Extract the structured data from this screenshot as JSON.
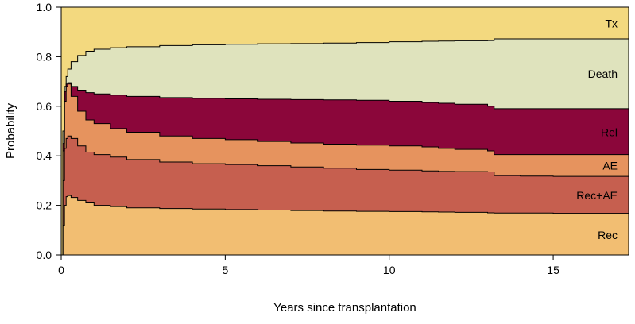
{
  "chart_data": {
    "type": "area",
    "stacked": true,
    "xlabel": "Years since transplantation",
    "ylabel": "Probability",
    "xlim": [
      0,
      17.3
    ],
    "ylim": [
      0,
      1
    ],
    "xticks": [
      {
        "value": 0,
        "label": "0"
      },
      {
        "value": 5,
        "label": "5"
      },
      {
        "value": 10,
        "label": "10"
      },
      {
        "value": 15,
        "label": "15"
      }
    ],
    "yticks": [
      {
        "value": 0,
        "label": "0.0"
      },
      {
        "value": 0.2,
        "label": "0.2"
      },
      {
        "value": 0.4,
        "label": "0.4"
      },
      {
        "value": 0.6,
        "label": "0.6"
      },
      {
        "value": 0.8,
        "label": "0.8"
      },
      {
        "value": 1.0,
        "label": "1.0"
      }
    ],
    "x": [
      0,
      0.05,
      0.1,
      0.15,
      0.2,
      0.3,
      0.5,
      0.75,
      1,
      1.5,
      2,
      3,
      4,
      5,
      6,
      7,
      8,
      9,
      10,
      11,
      11.5,
      12,
      13,
      13.2,
      14,
      15,
      16,
      17.3
    ],
    "cumulative_boundaries": [
      {
        "name": "Rec",
        "values": [
          0,
          0.12,
          0.2,
          0.235,
          0.24,
          0.232,
          0.22,
          0.21,
          0.2,
          0.195,
          0.19,
          0.187,
          0.185,
          0.183,
          0.181,
          0.179,
          0.177,
          0.176,
          0.175,
          0.174,
          0.173,
          0.172,
          0.17,
          0.169,
          0.169,
          0.168,
          0.168,
          0.168
        ]
      },
      {
        "name": "Rec+AE",
        "values": [
          0,
          0.3,
          0.43,
          0.47,
          0.48,
          0.47,
          0.44,
          0.415,
          0.405,
          0.395,
          0.385,
          0.375,
          0.368,
          0.365,
          0.36,
          0.355,
          0.35,
          0.345,
          0.342,
          0.339,
          0.337,
          0.336,
          0.335,
          0.32,
          0.318,
          0.317,
          0.317,
          0.317
        ]
      },
      {
        "name": "AE",
        "values": [
          0,
          0.42,
          0.62,
          0.68,
          0.69,
          0.64,
          0.58,
          0.545,
          0.53,
          0.51,
          0.495,
          0.48,
          0.47,
          0.465,
          0.458,
          0.452,
          0.447,
          0.443,
          0.44,
          0.436,
          0.43,
          0.426,
          0.42,
          0.405,
          0.405,
          0.405,
          0.405,
          0.405
        ]
      },
      {
        "name": "Rel",
        "values": [
          0,
          0.45,
          0.66,
          0.69,
          0.695,
          0.68,
          0.665,
          0.655,
          0.65,
          0.645,
          0.64,
          0.635,
          0.632,
          0.63,
          0.628,
          0.627,
          0.626,
          0.624,
          0.62,
          0.615,
          0.612,
          0.608,
          0.6,
          0.59,
          0.59,
          0.59,
          0.59,
          0.59
        ]
      },
      {
        "name": "Death",
        "values": [
          0,
          0.5,
          0.68,
          0.72,
          0.75,
          0.78,
          0.805,
          0.822,
          0.83,
          0.836,
          0.84,
          0.845,
          0.848,
          0.85,
          0.852,
          0.853,
          0.855,
          0.857,
          0.86,
          0.862,
          0.863,
          0.864,
          0.865,
          0.872,
          0.872,
          0.872,
          0.872,
          0.872
        ]
      },
      {
        "name": "Tx",
        "values": [
          1,
          1,
          1,
          1,
          1,
          1,
          1,
          1,
          1,
          1,
          1,
          1,
          1,
          1,
          1,
          1,
          1,
          1,
          1,
          1,
          1,
          1,
          1,
          1,
          1,
          1,
          1,
          1
        ]
      }
    ],
    "series": [
      {
        "name": "Rec",
        "label": "Rec",
        "color": "#F2BE72",
        "label_y": 0.08
      },
      {
        "name": "Rec+AE",
        "label": "Rec+AE",
        "color": "#C65F4F",
        "label_y": 0.24
      },
      {
        "name": "AE",
        "label": "AE",
        "color": "#E6935E",
        "label_y": 0.36
      },
      {
        "name": "Rel",
        "label": "Rel",
        "color": "#8B063A",
        "label_y": 0.495
      },
      {
        "name": "Death",
        "label": "Death",
        "color": "#DFE3BD",
        "label_y": 0.73
      },
      {
        "name": "Tx",
        "label": "Tx",
        "color": "#F3D97F",
        "label_y": 0.935
      }
    ]
  }
}
